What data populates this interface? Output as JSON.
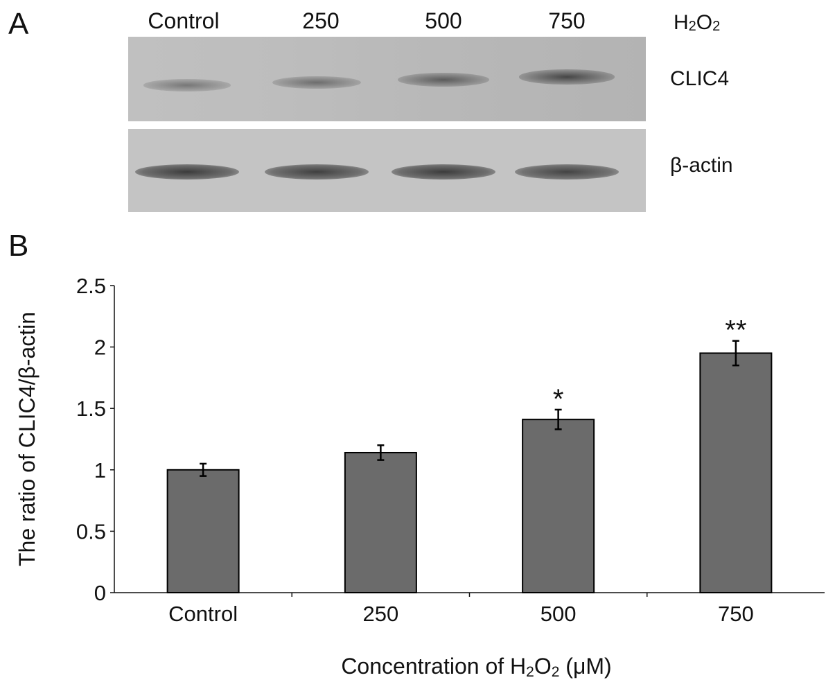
{
  "panel_labels": {
    "a": "A",
    "b": "B"
  },
  "blot": {
    "treatment_label": "H2O2",
    "lanes": [
      "Control",
      "250",
      "500",
      "750"
    ],
    "rows": [
      {
        "label": "CLIC4"
      },
      {
        "label": "β-actin"
      }
    ],
    "clic4_intensity": [
      0.55,
      0.62,
      0.75,
      0.92
    ],
    "actin_intensity": [
      0.9,
      0.88,
      0.9,
      0.85
    ]
  },
  "chart_data": {
    "type": "bar",
    "categories": [
      "Control",
      "250",
      "500",
      "750"
    ],
    "values": [
      1.0,
      1.14,
      1.41,
      1.95
    ],
    "errors": [
      0.05,
      0.06,
      0.08,
      0.1
    ],
    "significance": [
      "",
      "",
      "*",
      "**"
    ],
    "ylim": [
      0,
      2.5
    ],
    "yticks": [
      0,
      0.5,
      1,
      1.5,
      2,
      2.5
    ],
    "ytick_labels": [
      "0",
      "0.5",
      "1",
      "1.5",
      "2",
      "2.5"
    ],
    "ylabel": "The ratio of CLIC4/β-actin",
    "xlabel": "Concentration of H2O2 (μM)",
    "bar_color": "#6b6b6b",
    "grid": false
  }
}
